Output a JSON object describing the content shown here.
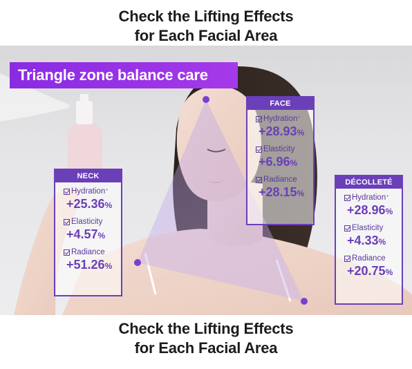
{
  "heading_top": {
    "line1": "Check the Lifting Effects",
    "line2": "for Each Facial Area"
  },
  "heading_bottom": {
    "line1": "Check the Lifting Effects",
    "line2": "for Each Facial Area"
  },
  "banner": {
    "label": "Triangle zone balance care"
  },
  "colors": {
    "accent": "#6a3fb8",
    "banner": "#9b33e6",
    "triangle": "#7a3fd0"
  },
  "cards": {
    "face": {
      "title": "FACE",
      "metrics": [
        {
          "label": "Hydration",
          "mark": "*",
          "value": "+28.93",
          "unit": "%"
        },
        {
          "label": "Elasticity",
          "value": "+6.96",
          "unit": "%"
        },
        {
          "label": "Radiance",
          "value": "+28.15",
          "unit": "%"
        }
      ]
    },
    "neck": {
      "title": "NECK",
      "metrics": [
        {
          "label": "Hydration",
          "mark": "*",
          "value": "+25.36",
          "unit": "%"
        },
        {
          "label": "Elasticity",
          "value": "+4.57",
          "unit": "%"
        },
        {
          "label": "Radiance",
          "value": "+51.26",
          "unit": "%"
        }
      ]
    },
    "decollete": {
      "title": "DÉCOLLETÉ",
      "metrics": [
        {
          "label": "Hydration",
          "mark": "*",
          "value": "+28.96",
          "unit": "%"
        },
        {
          "label": "Elasticity",
          "value": "+4.33",
          "unit": "%"
        },
        {
          "label": "Radiance",
          "value": "+20.75",
          "unit": "%"
        }
      ]
    }
  }
}
